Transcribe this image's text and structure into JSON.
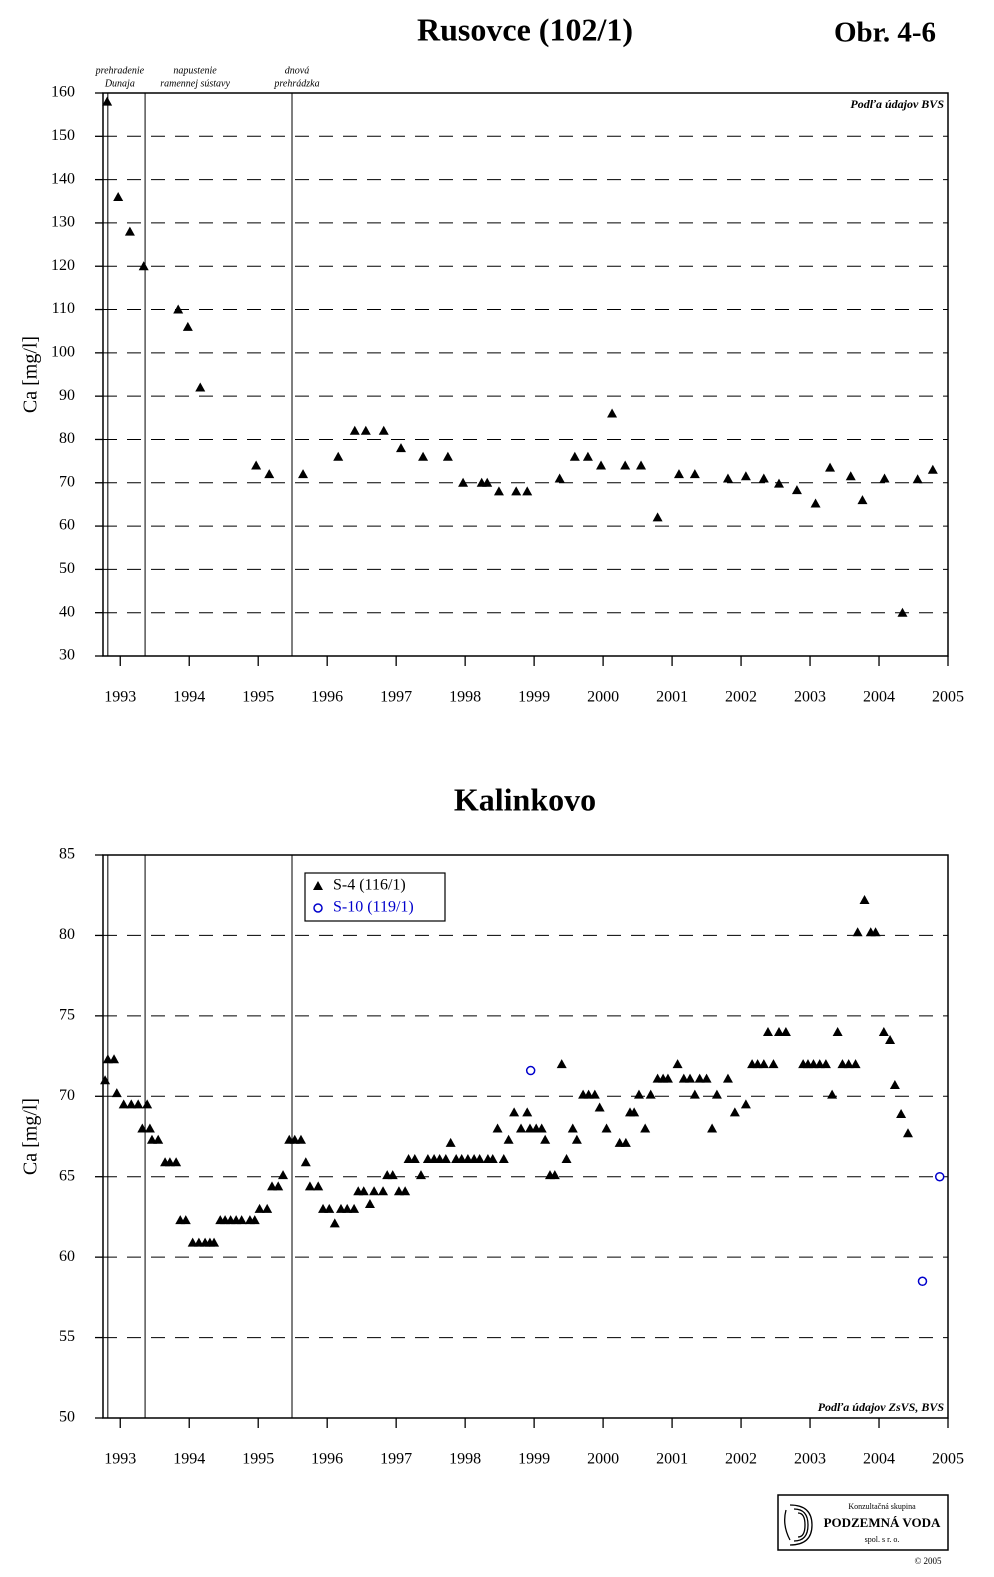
{
  "figure_label": "Obr. 4-6",
  "footer": {
    "line1": "Konzultačná skupina",
    "line2": "PODZEMNÁ VODA",
    "line3": "spol. s r. o.",
    "copyright": "© 2005"
  },
  "chart_data": [
    {
      "type": "scatter",
      "title": "Rusovce (102/1)",
      "y_label": "Ca [mg/l]",
      "note": "Podľa údajov BVS",
      "note_corner": "upper right",
      "xlim": [
        1992.75,
        2005
      ],
      "xticks": [
        1993,
        1994,
        1995,
        1996,
        1997,
        1998,
        1999,
        2000,
        2001,
        2002,
        2003,
        2004,
        2005
      ],
      "ylim": [
        30,
        160
      ],
      "yticks": [
        30,
        40,
        50,
        60,
        70,
        80,
        90,
        100,
        110,
        120,
        130,
        140,
        150,
        160
      ],
      "grid": true,
      "events": [
        {
          "x": 1992.82,
          "label": [
            "prehradenie",
            "Dunaja"
          ]
        },
        {
          "x": 1993.36,
          "label": [
            "napustenie",
            "ramennej sústavy"
          ]
        },
        {
          "x": 1995.49,
          "label": [
            "dnová",
            "prehrádzka"
          ]
        }
      ],
      "series": [
        {
          "color": "#000000",
          "marker": "triangle",
          "x": [
            1992.81,
            1992.97,
            1993.14,
            1993.34,
            1993.84,
            1993.98,
            1994.16,
            1994.97,
            1995.16,
            1995.65,
            1996.16,
            1996.4,
            1996.56,
            1996.82,
            1997.07,
            1997.39,
            1997.75,
            1997.97,
            1998.24,
            1998.32,
            1998.49,
            1998.74,
            1998.9,
            1999.37,
            1999.59,
            1999.78,
            1999.97,
            2000.13,
            2000.32,
            2000.55,
            2000.79,
            2001.1,
            2001.33,
            2001.81,
            2002.07,
            2002.33,
            2002.55,
            2002.81,
            2003.08,
            2003.29,
            2003.59,
            2003.76,
            2004.08,
            2004.34,
            2004.56,
            2004.78
          ],
          "values": [
            158,
            136,
            128,
            120,
            110,
            106,
            92,
            74,
            72,
            72,
            76,
            82,
            82,
            82,
            78,
            76,
            76,
            70,
            70,
            70,
            68,
            68,
            68,
            71,
            76,
            76,
            74,
            86,
            74,
            74,
            62,
            72,
            72,
            71,
            71.5,
            71,
            69.8,
            68.3,
            65.2,
            73.5,
            71.5,
            66,
            71,
            40,
            70.8,
            73
          ]
        }
      ]
    },
    {
      "type": "scatter",
      "title": "Kalinkovo",
      "y_label": "Ca [mg/l]",
      "note": "Podľa údajov ZsVS, BVS",
      "note_corner": "lower right",
      "legend": "upper left",
      "xlim": [
        1992.75,
        2005
      ],
      "xticks": [
        1993,
        1994,
        1995,
        1996,
        1997,
        1998,
        1999,
        2000,
        2001,
        2002,
        2003,
        2004,
        2005
      ],
      "ylim": [
        50,
        85
      ],
      "yticks": [
        50,
        55,
        60,
        65,
        70,
        75,
        80,
        85
      ],
      "grid": true,
      "events": [
        {
          "x": 1992.82
        },
        {
          "x": 1993.36
        },
        {
          "x": 1995.49
        }
      ],
      "series": [
        {
          "name": "S-4 (116/1)",
          "color": "#000000",
          "marker": "triangle",
          "x": [
            1992.78,
            1992.82,
            1992.91,
            1992.95,
            1993.05,
            1993.16,
            1993.26,
            1993.32,
            1993.39,
            1993.43,
            1993.46,
            1993.55,
            1993.65,
            1993.72,
            1993.81,
            1993.87,
            1993.95,
            1994.05,
            1994.14,
            1994.23,
            1994.3,
            1994.36,
            1994.45,
            1994.52,
            1994.6,
            1994.68,
            1994.76,
            1994.88,
            1994.95,
            1995.02,
            1995.13,
            1995.2,
            1995.29,
            1995.36,
            1995.45,
            1995.53,
            1995.62,
            1995.69,
            1995.75,
            1995.87,
            1995.94,
            1996.03,
            1996.11,
            1996.2,
            1996.29,
            1996.39,
            1996.45,
            1996.53,
            1996.62,
            1996.68,
            1996.81,
            1996.87,
            1996.95,
            1997.04,
            1997.13,
            1997.18,
            1997.27,
            1997.36,
            1997.46,
            1997.55,
            1997.63,
            1997.72,
            1997.79,
            1997.87,
            1997.95,
            1998.04,
            1998.13,
            1998.21,
            1998.33,
            1998.4,
            1998.47,
            1998.56,
            1998.63,
            1998.71,
            1998.81,
            1998.9,
            1998.94,
            1999.03,
            1999.11,
            1999.16,
            1999.23,
            1999.3,
            1999.4,
            1999.47,
            1999.56,
            1999.62,
            1999.71,
            1999.79,
            1999.88,
            1999.95,
            2000.05,
            2000.24,
            2000.33,
            2000.39,
            2000.45,
            2000.52,
            2000.61,
            2000.69,
            2000.79,
            2000.87,
            2000.94,
            2001.08,
            2001.17,
            2001.26,
            2001.33,
            2001.4,
            2001.5,
            2001.58,
            2001.65,
            2001.81,
            2001.91,
            2002.07,
            2002.16,
            2002.24,
            2002.33,
            2002.39,
            2002.47,
            2002.55,
            2002.65,
            2002.9,
            2002.97,
            2003.05,
            2003.14,
            2003.23,
            2003.32,
            2003.4,
            2003.47,
            2003.56,
            2003.66,
            2003.69,
            2003.79,
            2003.88,
            2003.95,
            2004.07,
            2004.16,
            2004.23,
            2004.32,
            2004.42
          ],
          "values": [
            71.0,
            72.3,
            72.3,
            70.2,
            69.5,
            69.5,
            69.5,
            68.0,
            69.5,
            68.0,
            67.3,
            67.3,
            65.9,
            65.9,
            65.9,
            62.3,
            62.3,
            60.9,
            60.9,
            60.9,
            60.9,
            60.9,
            62.3,
            62.3,
            62.3,
            62.3,
            62.3,
            62.3,
            62.3,
            63.0,
            63.0,
            64.4,
            64.4,
            65.1,
            67.3,
            67.3,
            67.3,
            65.9,
            64.4,
            64.4,
            63.0,
            63.0,
            62.1,
            63.0,
            63.0,
            63.0,
            64.1,
            64.1,
            63.3,
            64.1,
            64.1,
            65.1,
            65.1,
            64.1,
            64.1,
            66.1,
            66.1,
            65.1,
            66.1,
            66.1,
            66.1,
            66.1,
            67.1,
            66.1,
            66.1,
            66.1,
            66.1,
            66.1,
            66.1,
            66.1,
            68.0,
            66.1,
            67.3,
            69.0,
            68.0,
            69.0,
            68.0,
            68.0,
            68.0,
            67.3,
            65.1,
            65.1,
            72.0,
            66.1,
            68.0,
            67.3,
            70.1,
            70.1,
            70.1,
            69.3,
            68.0,
            67.1,
            67.1,
            69.0,
            69.0,
            70.1,
            68.0,
            70.1,
            71.1,
            71.1,
            71.1,
            72.0,
            71.1,
            71.1,
            70.1,
            71.1,
            71.1,
            68.0,
            70.1,
            71.1,
            69.0,
            69.5,
            72.0,
            72.0,
            72.0,
            74.0,
            72.0,
            74.0,
            74.0,
            72.0,
            72.0,
            72.0,
            72.0,
            72.0,
            70.1,
            74.0,
            72.0,
            72.0,
            72.0,
            80.2,
            82.2,
            80.2,
            80.2,
            74.0,
            73.5,
            70.7,
            68.9,
            67.7
          ]
        },
        {
          "name": "S-10 (119/1)",
          "color": "#0000cc",
          "marker": "circle",
          "x": [
            1998.95,
            2004.63,
            2004.88
          ],
          "values": [
            71.6,
            58.5,
            65.0
          ]
        }
      ]
    }
  ]
}
